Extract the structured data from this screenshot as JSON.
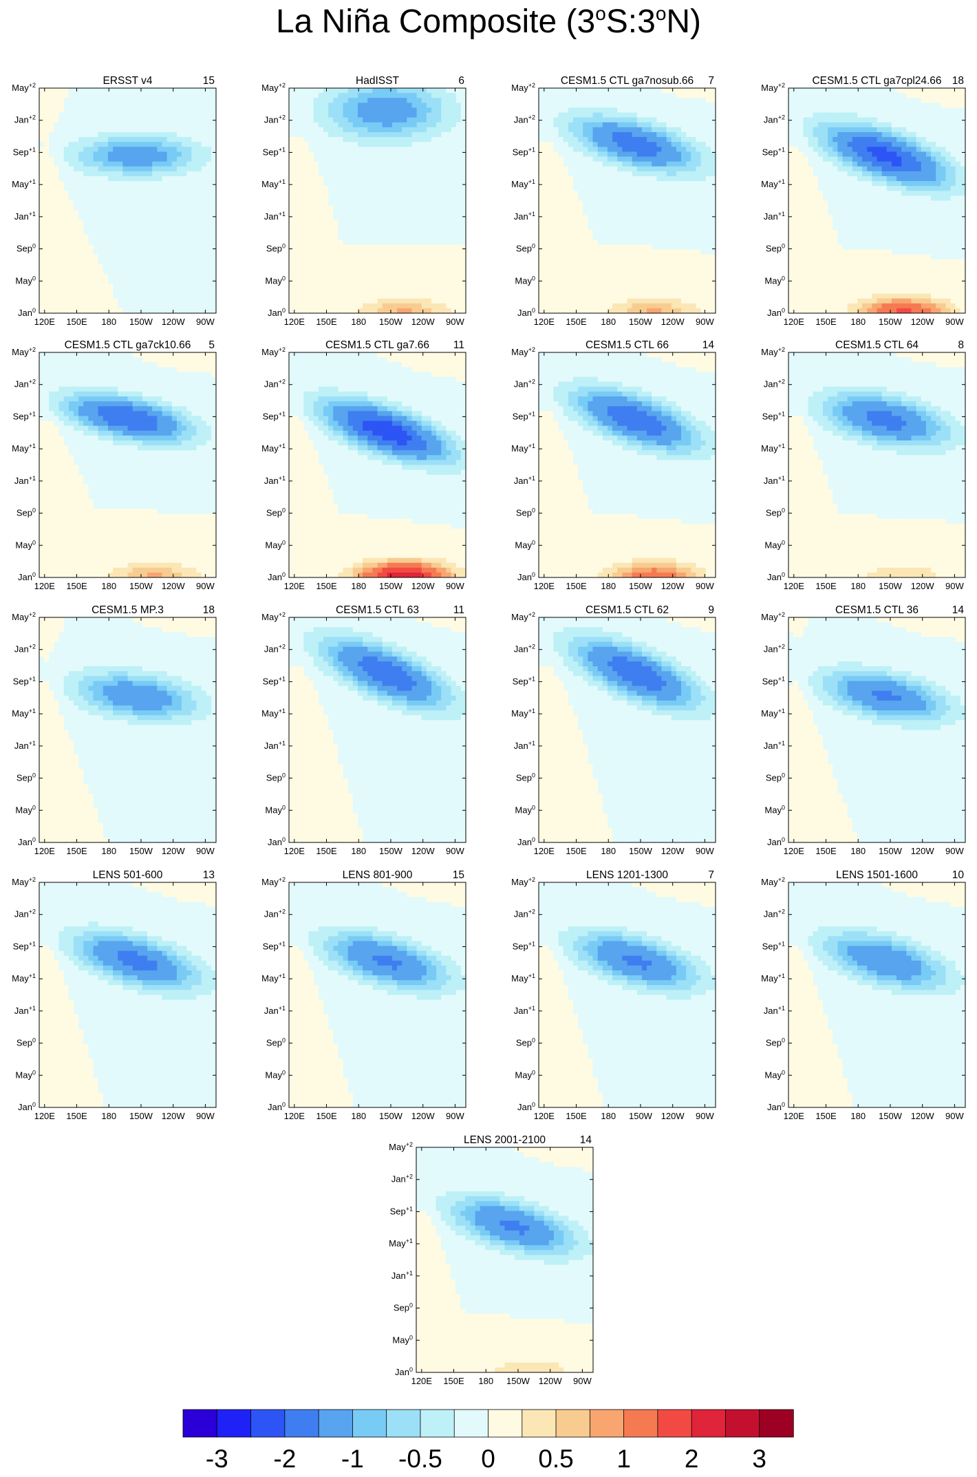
{
  "title": {
    "main": "La Niña Composite (3",
    "sup1": "o",
    "mid": "S:3",
    "sup2": "o",
    "end": "N)"
  },
  "chart_data": {
    "type": "heatmap",
    "description_units": "SST anomaly composite (degC), longitude vs time",
    "y_ticks": [
      {
        "base": "Jan",
        "sup": "0"
      },
      {
        "base": "May",
        "sup": "0"
      },
      {
        "base": "Sep",
        "sup": "0"
      },
      {
        "base": "Jan",
        "sup": "+1"
      },
      {
        "base": "May",
        "sup": "+1"
      },
      {
        "base": "Sep",
        "sup": "+1"
      },
      {
        "base": "Jan",
        "sup": "+2"
      },
      {
        "base": "May",
        "sup": "+2"
      }
    ],
    "x_ticks": [
      "120E",
      "150E",
      "180",
      "150W",
      "120W",
      "90W"
    ],
    "x_tick_lons": [
      120,
      150,
      180,
      210,
      240,
      270
    ],
    "x_range": [
      115,
      280
    ],
    "y_range": [
      0,
      28
    ],
    "colorbar": {
      "colors": [
        "#2b00d8",
        "#1f22f6",
        "#2d55f5",
        "#3f7ef0",
        "#58a4ee",
        "#78cbf5",
        "#9ce0f7",
        "#bdf0f7",
        "#e2fafb",
        "#fffbe3",
        "#fbe6b5",
        "#f8cc90",
        "#f8a570",
        "#f57a52",
        "#f24a43",
        "#e0243a",
        "#c4102f",
        "#9c0022"
      ],
      "labels": [
        "-3",
        "-2",
        "-1",
        "-0.5",
        "0",
        "0.5",
        "1",
        "2",
        "3"
      ],
      "label_boundaries": [
        1,
        3,
        5,
        7,
        9,
        11,
        13,
        15,
        17
      ]
    },
    "panels": [
      {
        "name": "ERSST v4",
        "count": "15"
      },
      {
        "name": "HadISST",
        "count": "6"
      },
      {
        "name": "CESM1.5 CTL ga7nosub.66",
        "count": "7"
      },
      {
        "name": "CESM1.5 CTL ga7cpl24.66",
        "count": "18"
      },
      {
        "name": "CESM1.5 CTL ga7ck10.66",
        "count": "5"
      },
      {
        "name": "CESM1.5 CTL ga7.66",
        "count": "11"
      },
      {
        "name": "CESM1.5 CTL 66",
        "count": "14"
      },
      {
        "name": "CESM1.5 CTL 64",
        "count": "8"
      },
      {
        "name": "CESM1.5 MP.3",
        "count": "18"
      },
      {
        "name": "CESM1.5 CTL 63",
        "count": "11"
      },
      {
        "name": "CESM1.5 CTL 62",
        "count": "9"
      },
      {
        "name": "CESM1.5 CTL 36",
        "count": "14"
      },
      {
        "name": "LENS 501-600",
        "count": "13"
      },
      {
        "name": "LENS 801-900",
        "count": "15"
      },
      {
        "name": "LENS 1201-1300",
        "count": "7"
      },
      {
        "name": "LENS 1501-1600",
        "count": "10"
      },
      {
        "name": "LENS 2001-2100",
        "count": "14"
      }
    ]
  }
}
